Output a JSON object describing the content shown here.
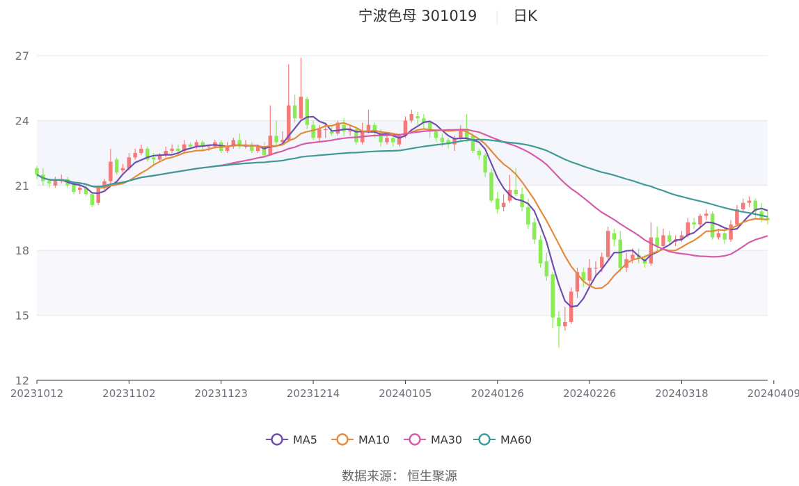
{
  "chart_data": {
    "type": "candlestick",
    "title": "宁波色母 301019",
    "period": "日K",
    "ylim": [
      12,
      27
    ],
    "y_ticks": [
      12,
      15,
      18,
      21,
      24,
      27
    ],
    "x_tick_labels": [
      "20231012",
      "20231102",
      "20231123",
      "20231214",
      "20240105",
      "20240126",
      "20240226",
      "20240318",
      "20240409"
    ],
    "x_tick_index": [
      0,
      15,
      30,
      45,
      60,
      75,
      90,
      105,
      120
    ],
    "bands": [
      [
        12,
        15,
        "#ffffff"
      ],
      [
        15,
        18,
        "#f8f8fc"
      ],
      [
        18,
        21,
        "#ffffff"
      ],
      [
        21,
        24,
        "#f5f6fb"
      ],
      [
        24,
        27,
        "#ffffff"
      ]
    ],
    "up_color": "#f47a7a",
    "down_color": "#8aec55",
    "candles": [
      [
        21.8,
        21.5,
        21.9,
        21.3
      ],
      [
        21.5,
        21.2,
        21.8,
        21.0
      ],
      [
        21.2,
        21.1,
        21.3,
        20.9
      ],
      [
        21.0,
        21.2,
        21.4,
        20.9
      ],
      [
        21.2,
        21.3,
        21.5,
        21.1
      ],
      [
        21.3,
        21.0,
        21.4,
        20.9
      ],
      [
        21.1,
        20.7,
        21.2,
        20.6
      ],
      [
        20.8,
        20.9,
        21.0,
        20.6
      ],
      [
        20.9,
        20.6,
        21.0,
        20.5
      ],
      [
        20.6,
        20.1,
        20.7,
        20.0
      ],
      [
        20.2,
        20.9,
        21.0,
        20.1
      ],
      [
        21.0,
        21.2,
        21.3,
        20.8
      ],
      [
        21.2,
        22.1,
        22.7,
        21.1
      ],
      [
        22.2,
        21.6,
        22.3,
        21.5
      ],
      [
        21.7,
        21.8,
        22.0,
        21.6
      ],
      [
        21.8,
        22.3,
        22.5,
        21.7
      ],
      [
        22.3,
        22.5,
        22.7,
        22.2
      ],
      [
        22.5,
        22.7,
        22.9,
        22.4
      ],
      [
        22.7,
        22.2,
        22.8,
        22.1
      ],
      [
        22.3,
        22.2,
        22.5,
        22.0
      ],
      [
        22.2,
        22.4,
        22.5,
        22.1
      ],
      [
        22.4,
        22.6,
        22.8,
        22.3
      ],
      [
        22.6,
        22.7,
        22.9,
        22.5
      ],
      [
        22.7,
        22.6,
        22.9,
        22.5
      ],
      [
        22.6,
        22.9,
        23.1,
        22.5
      ],
      [
        22.9,
        22.8,
        23.0,
        22.7
      ],
      [
        22.8,
        23.0,
        23.1,
        22.7
      ],
      [
        23.0,
        22.8,
        23.1,
        22.6
      ],
      [
        22.8,
        22.8,
        22.9,
        22.6
      ],
      [
        22.8,
        23.0,
        23.1,
        22.7
      ],
      [
        23.0,
        22.6,
        23.1,
        22.5
      ],
      [
        22.6,
        22.8,
        23.0,
        22.5
      ],
      [
        22.8,
        23.1,
        23.2,
        22.7
      ],
      [
        23.1,
        22.8,
        23.4,
        22.7
      ],
      [
        22.8,
        22.9,
        23.1,
        22.7
      ],
      [
        22.9,
        22.6,
        23.0,
        22.5
      ],
      [
        22.6,
        22.8,
        22.9,
        22.5
      ],
      [
        22.8,
        22.4,
        23.0,
        22.3
      ],
      [
        22.4,
        23.3,
        24.7,
        22.4
      ],
      [
        23.3,
        23.0,
        24.0,
        22.8
      ],
      [
        23.0,
        23.1,
        23.5,
        22.9
      ],
      [
        23.1,
        24.7,
        26.6,
        23.0
      ],
      [
        24.7,
        24.1,
        25.2,
        23.9
      ],
      [
        24.1,
        25.1,
        26.9,
        24.0
      ],
      [
        25.0,
        23.8,
        25.1,
        23.6
      ],
      [
        23.8,
        23.2,
        24.0,
        23.1
      ],
      [
        23.2,
        23.6,
        23.8,
        23.0
      ],
      [
        23.6,
        23.6,
        23.9,
        23.2
      ],
      [
        23.5,
        23.4,
        23.7,
        23.3
      ],
      [
        23.4,
        23.9,
        24.0,
        23.3
      ],
      [
        23.8,
        23.5,
        24.1,
        23.3
      ],
      [
        23.5,
        23.6,
        23.8,
        23.3
      ],
      [
        23.6,
        23.0,
        23.7,
        22.9
      ],
      [
        23.0,
        23.5,
        23.9,
        22.9
      ],
      [
        23.5,
        23.8,
        24.5,
        23.4
      ],
      [
        23.8,
        23.5,
        23.9,
        23.2
      ],
      [
        23.5,
        23.0,
        23.6,
        22.8
      ],
      [
        23.0,
        23.2,
        23.4,
        22.9
      ],
      [
        23.2,
        23.0,
        23.3,
        22.8
      ],
      [
        22.9,
        23.3,
        23.4,
        22.8
      ],
      [
        23.3,
        24.0,
        24.2,
        23.2
      ],
      [
        24.0,
        24.3,
        24.5,
        23.9
      ],
      [
        24.2,
        24.1,
        24.4,
        23.8
      ],
      [
        24.1,
        23.9,
        24.3,
        23.6
      ],
      [
        23.9,
        23.5,
        24.0,
        23.2
      ],
      [
        23.5,
        23.2,
        23.6,
        23.0
      ],
      [
        23.2,
        23.0,
        23.4,
        22.8
      ],
      [
        23.1,
        22.9,
        23.2,
        22.7
      ],
      [
        22.9,
        23.2,
        23.3,
        22.6
      ],
      [
        23.2,
        23.6,
        23.8,
        23.1
      ],
      [
        23.6,
        23.2,
        24.3,
        23.0
      ],
      [
        23.3,
        22.6,
        23.4,
        22.5
      ],
      [
        22.6,
        22.4,
        22.7,
        22.2
      ],
      [
        22.4,
        21.6,
        22.5,
        21.4
      ],
      [
        21.6,
        20.3,
        21.8,
        20.2
      ],
      [
        20.4,
        19.9,
        20.7,
        19.7
      ],
      [
        20.0,
        20.2,
        20.6,
        19.8
      ],
      [
        20.3,
        20.8,
        21.5,
        20.2
      ],
      [
        20.8,
        20.6,
        21.8,
        20.5
      ],
      [
        20.6,
        20.0,
        20.9,
        19.8
      ],
      [
        20.0,
        19.2,
        20.4,
        19.0
      ],
      [
        19.3,
        18.5,
        19.5,
        18.3
      ],
      [
        18.5,
        17.4,
        18.7,
        17.2
      ],
      [
        17.5,
        16.8,
        17.9,
        16.6
      ],
      [
        16.9,
        14.9,
        17.0,
        14.4
      ],
      [
        14.9,
        14.5,
        15.2,
        13.5
      ],
      [
        14.5,
        14.7,
        15.4,
        14.3
      ],
      [
        14.7,
        16.1,
        16.3,
        14.6
      ],
      [
        16.1,
        17.0,
        17.2,
        15.8
      ],
      [
        17.0,
        16.6,
        17.2,
        16.3
      ],
      [
        16.6,
        17.2,
        17.6,
        16.4
      ],
      [
        17.2,
        17.2,
        17.5,
        16.8
      ],
      [
        17.2,
        17.7,
        17.9,
        17.0
      ],
      [
        17.7,
        18.9,
        19.1,
        17.6
      ],
      [
        18.8,
        18.5,
        19.0,
        18.2
      ],
      [
        18.5,
        17.2,
        18.9,
        17.0
      ],
      [
        17.2,
        17.6,
        17.9,
        17.0
      ],
      [
        17.6,
        17.8,
        18.1,
        17.4
      ],
      [
        17.8,
        17.6,
        18.1,
        17.4
      ],
      [
        17.6,
        17.4,
        17.8,
        17.2
      ],
      [
        17.4,
        18.6,
        19.3,
        17.3
      ],
      [
        18.6,
        18.2,
        19.1,
        17.9
      ],
      [
        18.2,
        18.7,
        19.0,
        18.1
      ],
      [
        18.7,
        18.4,
        18.9,
        18.3
      ],
      [
        18.4,
        18.5,
        18.7,
        18.2
      ],
      [
        18.5,
        18.7,
        18.9,
        18.4
      ],
      [
        18.7,
        19.3,
        19.5,
        18.6
      ],
      [
        19.3,
        19.2,
        19.5,
        19.0
      ],
      [
        19.2,
        19.6,
        19.7,
        19.0
      ],
      [
        19.6,
        19.7,
        19.9,
        19.4
      ],
      [
        19.7,
        18.6,
        19.8,
        18.5
      ],
      [
        18.6,
        18.8,
        19.0,
        18.5
      ],
      [
        18.8,
        18.5,
        18.9,
        18.3
      ],
      [
        18.5,
        19.2,
        19.4,
        18.4
      ],
      [
        19.2,
        19.9,
        20.1,
        19.1
      ],
      [
        19.9,
        20.2,
        20.4,
        19.8
      ],
      [
        20.2,
        20.3,
        20.5,
        20.0
      ],
      [
        20.3,
        19.8,
        20.4,
        19.5
      ],
      [
        19.8,
        19.5,
        20.2,
        19.3
      ],
      [
        19.5,
        19.4,
        19.8,
        19.2
      ]
    ],
    "series": [
      {
        "name": "MA5",
        "color": "#6f4db0"
      },
      {
        "name": "MA10",
        "color": "#e58a3a"
      },
      {
        "name": "MA30",
        "color": "#d65ca8"
      },
      {
        "name": "MA60",
        "color": "#3f9a97"
      }
    ],
    "legend_position": "bottom-center"
  },
  "footer": {
    "source_label": "数据来源：",
    "source_name": "恒生聚源"
  }
}
